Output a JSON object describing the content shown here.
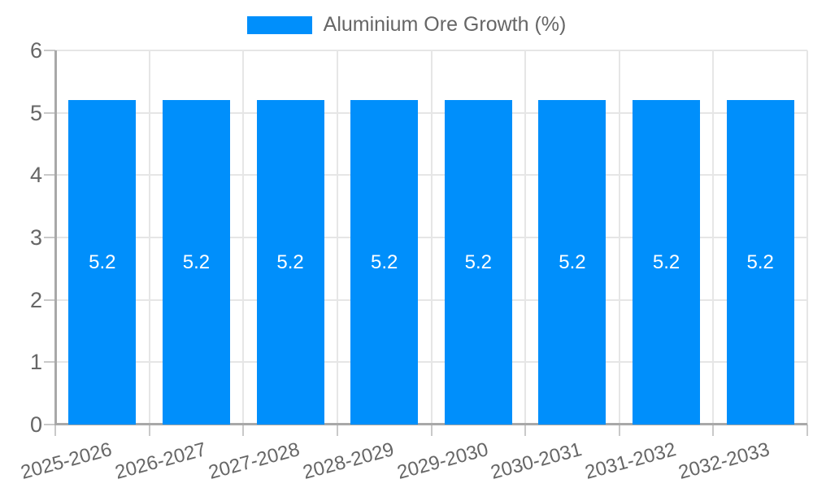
{
  "chart_data": {
    "type": "bar",
    "title": "Aluminium Ore Growth (%)",
    "categories": [
      "2025-2026",
      "2026-2027",
      "2027-2028",
      "2028-2029",
      "2029-2030",
      "2030-2031",
      "2031-2032",
      "2032-2033"
    ],
    "series": [
      {
        "name": "Aluminium Ore Growth (%)",
        "values": [
          5.2,
          5.2,
          5.2,
          5.2,
          5.2,
          5.2,
          5.2,
          5.2
        ]
      }
    ],
    "bar_value_labels": [
      "5.2",
      "5.2",
      "5.2",
      "5.2",
      "5.2",
      "5.2",
      "5.2",
      "5.2"
    ],
    "xlabel": "",
    "ylabel": "",
    "y_ticks": [
      "0",
      "1",
      "2",
      "3",
      "4",
      "5",
      "6"
    ],
    "ylim": [
      0,
      6
    ],
    "grid": true,
    "legend_position": "top"
  },
  "colors": {
    "bar": "#008FFB",
    "bar_label": "#ffffff",
    "gridline": "#e6e6e6",
    "axis_line": "#a8a8a8",
    "tick_mark": "#c9c9c9",
    "tick_text": "#666666",
    "background": "#ffffff"
  }
}
